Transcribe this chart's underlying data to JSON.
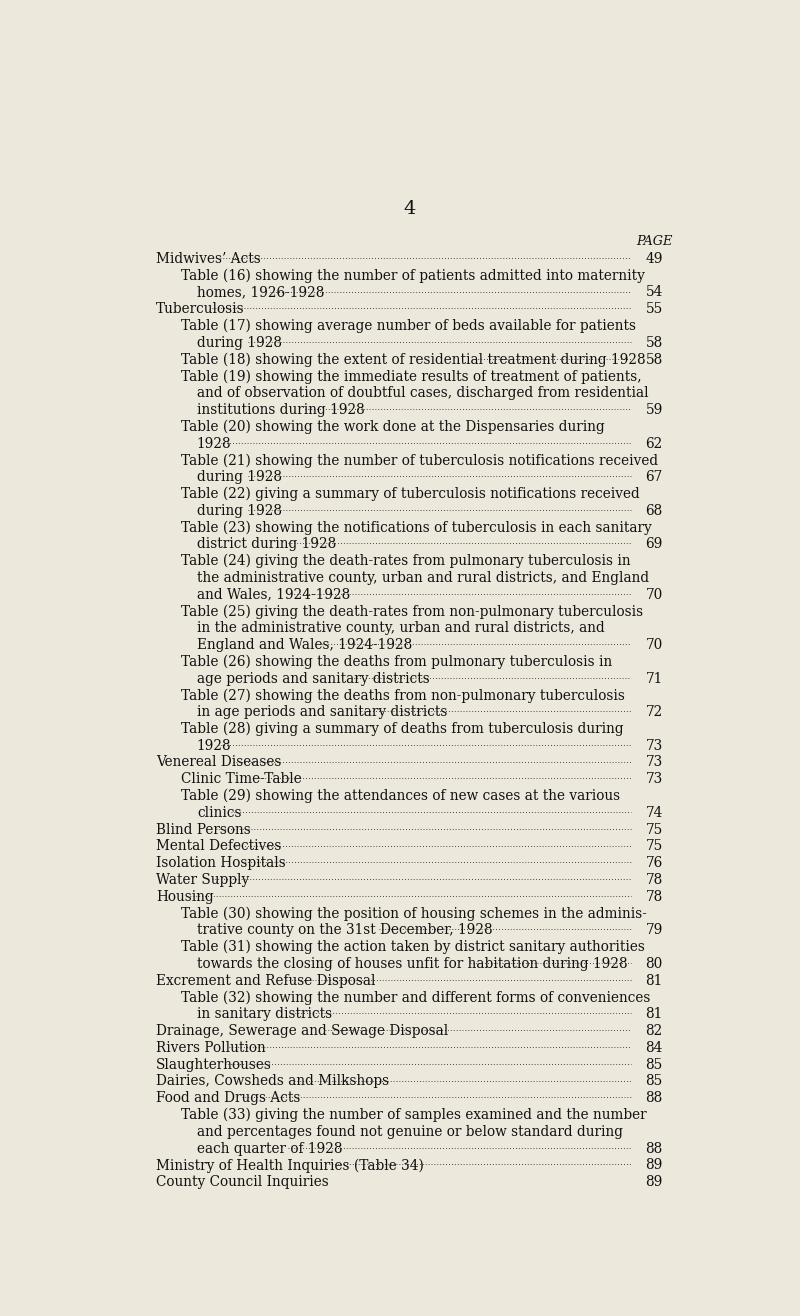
{
  "background_color": "#ede8dc",
  "page_number": "4",
  "page_label": "PAGE",
  "body_fontsize": 9.8,
  "entries": [
    {
      "text": "Midwives’ Acts",
      "page": "49",
      "indent": 0,
      "continuation": false
    },
    {
      "text": "Table (16) showing the number of patients admitted into maternity",
      "page": "",
      "indent": 1,
      "continuation": false
    },
    {
      "text": "homes, 1926-1928",
      "page": "54",
      "indent": 2,
      "continuation": true
    },
    {
      "text": "Tuberculosis",
      "page": "55",
      "indent": 0,
      "continuation": false
    },
    {
      "text": "Table (17) showing average number of beds available for patients",
      "page": "",
      "indent": 1,
      "continuation": false
    },
    {
      "text": "during 1928",
      "page": "58",
      "indent": 2,
      "continuation": true
    },
    {
      "text": "Table (18) showing the extent of residential treatment during 1928",
      "page": "58",
      "indent": 1,
      "continuation": false
    },
    {
      "text": "Table (19) showing the immediate results of treatment of patients,",
      "page": "",
      "indent": 1,
      "continuation": false
    },
    {
      "text": "and of observation of doubtful cases, discharged from residential",
      "page": "",
      "indent": 2,
      "continuation": false
    },
    {
      "text": "institutions during 1928",
      "page": "59",
      "indent": 2,
      "continuation": true
    },
    {
      "text": "Table (20) showing the work done at the Dispensaries during",
      "page": "",
      "indent": 1,
      "continuation": false
    },
    {
      "text": "1928",
      "page": "62",
      "indent": 2,
      "continuation": true
    },
    {
      "text": "Table (21) showing the number of tuberculosis notifications received",
      "page": "",
      "indent": 1,
      "continuation": false
    },
    {
      "text": "during 1928",
      "page": "67",
      "indent": 2,
      "continuation": true
    },
    {
      "text": "Table (22) giving a summary of tuberculosis notifications received",
      "page": "",
      "indent": 1,
      "continuation": false
    },
    {
      "text": "during 1928",
      "page": "68",
      "indent": 2,
      "continuation": true
    },
    {
      "text": "Table (23) showing the notifications of tuberculosis in each sanitary",
      "page": "",
      "indent": 1,
      "continuation": false
    },
    {
      "text": "district during 1928",
      "page": "69",
      "indent": 2,
      "continuation": true
    },
    {
      "text": "Table (24) giving the death-rates from pulmonary tuberculosis in",
      "page": "",
      "indent": 1,
      "continuation": false
    },
    {
      "text": "the administrative county, urban and rural districts, and England",
      "page": "",
      "indent": 2,
      "continuation": false
    },
    {
      "text": "and Wales, 1924-1928",
      "page": "70",
      "indent": 2,
      "continuation": true
    },
    {
      "text": "Table (25) giving the death-rates from non-pulmonary tuberculosis",
      "page": "",
      "indent": 1,
      "continuation": false
    },
    {
      "text": "in the administrative county, urban and rural districts, and",
      "page": "",
      "indent": 2,
      "continuation": false
    },
    {
      "text": "England and Wales, 1924-1928",
      "page": "70",
      "indent": 2,
      "continuation": true
    },
    {
      "text": "Table (26) showing the deaths from pulmonary tuberculosis in",
      "page": "",
      "indent": 1,
      "continuation": false
    },
    {
      "text": "age periods and sanitary districts",
      "page": "71",
      "indent": 2,
      "continuation": true
    },
    {
      "text": "Table (27) showing the deaths from non-pulmonary tuberculosis",
      "page": "",
      "indent": 1,
      "continuation": false
    },
    {
      "text": "in age periods and sanitary districts",
      "page": "72",
      "indent": 2,
      "continuation": true
    },
    {
      "text": "Table (28) giving a summary of deaths from tuberculosis during",
      "page": "",
      "indent": 1,
      "continuation": false
    },
    {
      "text": "1928",
      "page": "73",
      "indent": 2,
      "continuation": true
    },
    {
      "text": "Venereal Diseases",
      "page": "73",
      "indent": 0,
      "continuation": false
    },
    {
      "text": "Clinic Time-Table",
      "page": "73",
      "indent": 1,
      "continuation": false
    },
    {
      "text": "Table (29) showing the attendances of new cases at the various",
      "page": "",
      "indent": 1,
      "continuation": false
    },
    {
      "text": "clinics",
      "page": "74",
      "indent": 2,
      "continuation": true
    },
    {
      "text": "Blind Persons",
      "page": "75",
      "indent": 0,
      "continuation": false
    },
    {
      "text": "Mental Defectives",
      "page": "75",
      "indent": 0,
      "continuation": false
    },
    {
      "text": "Isolation Hospitals",
      "page": "76",
      "indent": 0,
      "continuation": false
    },
    {
      "text": "Water Supply",
      "page": "78",
      "indent": 0,
      "continuation": false
    },
    {
      "text": "Housing",
      "page": "78",
      "indent": 0,
      "continuation": false
    },
    {
      "text": "Table (30) showing the position of housing schemes in the adminis-",
      "page": "",
      "indent": 1,
      "continuation": false
    },
    {
      "text": "trative county on the 31st December, 1928",
      "page": "79",
      "indent": 2,
      "continuation": true
    },
    {
      "text": "Table (31) showing the action taken by district sanitary authorities",
      "page": "",
      "indent": 1,
      "continuation": false
    },
    {
      "text": "towards the closing of houses unfit for habitation during 1928",
      "page": "80",
      "indent": 2,
      "continuation": true
    },
    {
      "text": "Excrement and Refuse Disposal",
      "page": "81",
      "indent": 0,
      "continuation": false
    },
    {
      "text": "Table (32) showing the number and different forms of conveniences",
      "page": "",
      "indent": 1,
      "continuation": false
    },
    {
      "text": "in sanitary districts",
      "page": "81",
      "indent": 2,
      "continuation": true
    },
    {
      "text": "Drainage, Sewerage and Sewage Disposal",
      "page": "82",
      "indent": 0,
      "continuation": false
    },
    {
      "text": "Rivers Pollution",
      "page": "84",
      "indent": 0,
      "continuation": false
    },
    {
      "text": "Slaughterhouses",
      "page": "85",
      "indent": 0,
      "continuation": false
    },
    {
      "text": "Dairies, Cowsheds and Milkshops",
      "page": "85",
      "indent": 0,
      "continuation": false
    },
    {
      "text": "Food and Drugs Acts",
      "page": "88",
      "indent": 0,
      "continuation": false
    },
    {
      "text": "Table (33) giving the number of samples examined and the number",
      "page": "",
      "indent": 1,
      "continuation": false
    },
    {
      "text": "and percentages found not genuine or below standard during",
      "page": "",
      "indent": 2,
      "continuation": false
    },
    {
      "text": "each quarter of 1928",
      "page": "88",
      "indent": 2,
      "continuation": true
    },
    {
      "text": "Ministry of Health Inquiries (Table 34)",
      "page": "89",
      "indent": 0,
      "continuation": false
    },
    {
      "text": "County Council Inquiries",
      "page": "89",
      "indent": 0,
      "continuation": false
    }
  ]
}
